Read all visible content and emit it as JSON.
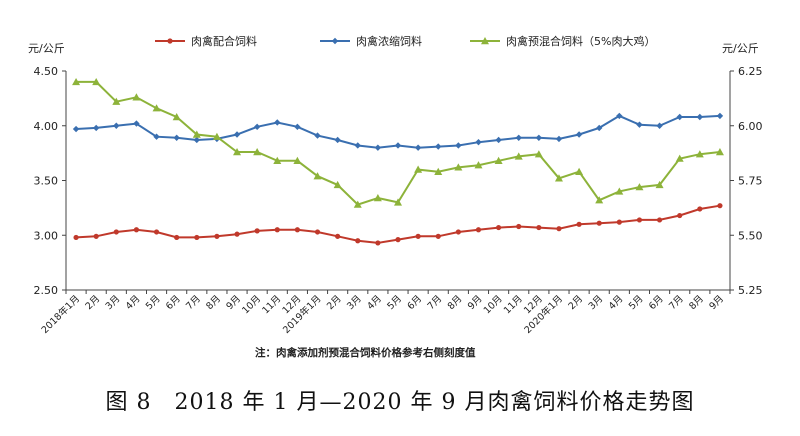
{
  "chart_data": {
    "type": "line",
    "y_unit_left": "元/公斤",
    "y_unit_right": "元/公斤",
    "ylim_left": [
      2.5,
      4.5
    ],
    "yticks_left": [
      "2.50",
      "3.00",
      "3.50",
      "4.00",
      "4.50"
    ],
    "ylim_right": [
      5.25,
      6.25
    ],
    "yticks_right": [
      "5.25",
      "5.50",
      "5.75",
      "6.00",
      "6.25"
    ],
    "grid": false,
    "legend_position": "top",
    "categories": [
      "2018年1月",
      "2月",
      "3月",
      "4月",
      "5月",
      "6月",
      "7月",
      "8月",
      "9月",
      "10月",
      "11月",
      "12月",
      "2019年1月",
      "2月",
      "3月",
      "4月",
      "5月",
      "6月",
      "7月",
      "8月",
      "9月",
      "10月",
      "11月",
      "12月",
      "2020年1月",
      "2月",
      "3月",
      "4月",
      "5月",
      "6月",
      "7月",
      "8月",
      "9月"
    ],
    "series": [
      {
        "name": "肉禽配合饲料",
        "axis": "left",
        "color": "#c0392b",
        "marker": "circle",
        "values": [
          2.98,
          2.99,
          3.03,
          3.05,
          3.03,
          2.98,
          2.98,
          2.99,
          3.01,
          3.04,
          3.05,
          3.05,
          3.03,
          2.99,
          2.95,
          2.93,
          2.96,
          2.99,
          2.99,
          3.03,
          3.05,
          3.07,
          3.08,
          3.07,
          3.06,
          3.1,
          3.11,
          3.12,
          3.14,
          3.14,
          3.18,
          3.24,
          3.27
        ]
      },
      {
        "name": "肉禽浓缩饲料",
        "axis": "left",
        "color": "#3a6fb0",
        "marker": "diamond",
        "values": [
          3.97,
          3.98,
          4.0,
          4.02,
          3.9,
          3.89,
          3.87,
          3.88,
          3.92,
          3.99,
          4.03,
          3.99,
          3.91,
          3.87,
          3.82,
          3.8,
          3.82,
          3.8,
          3.81,
          3.82,
          3.85,
          3.87,
          3.89,
          3.89,
          3.88,
          3.92,
          3.98,
          4.09,
          4.01,
          4.0,
          4.08,
          4.08,
          4.09
        ]
      },
      {
        "name": "肉禽预混合饲料（5%肉大鸡）",
        "axis": "right",
        "color": "#8db33a",
        "marker": "triangle",
        "values": [
          6.2,
          6.2,
          6.11,
          6.13,
          6.08,
          6.04,
          5.96,
          5.95,
          5.88,
          5.88,
          5.84,
          5.84,
          5.77,
          5.73,
          5.64,
          5.67,
          5.65,
          5.8,
          5.79,
          5.81,
          5.82,
          5.84,
          5.86,
          5.87,
          5.76,
          5.79,
          5.66,
          5.7,
          5.72,
          5.73,
          5.85,
          5.87,
          5.88
        ]
      }
    ],
    "note": "注：肉禽添加剂预混合饲料价格参考右侧刻度值"
  },
  "caption": "图 8　2018 年 1 月—2020 年 9 月肉禽饲料价格走势图"
}
